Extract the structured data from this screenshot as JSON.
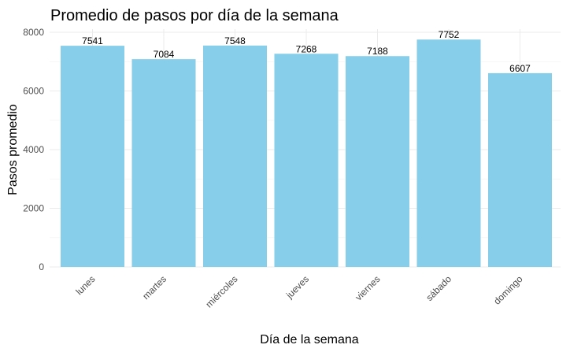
{
  "chart_data": {
    "type": "bar",
    "title": "Promedio de pasos por día de la semana",
    "xlabel": "Día de la semana",
    "ylabel": "Pasos promedio",
    "categories": [
      "lunes",
      "martes",
      "miércoles",
      "jueves",
      "viernes",
      "sábado",
      "domingo"
    ],
    "values": [
      7541,
      7084,
      7548,
      7268,
      7188,
      7752,
      6607
    ],
    "value_labels": [
      "7541",
      "7084",
      "7548",
      "7268",
      "7188",
      "7752",
      "6607"
    ],
    "ylim": [
      0,
      8000
    ],
    "yticks": [
      0,
      2000,
      4000,
      6000,
      8000
    ],
    "ytick_labels": [
      "0",
      "2000",
      "4000",
      "6000",
      "8000"
    ],
    "grid": true,
    "legend": "none",
    "bar_color": "#87CEEB",
    "x_tick_rotation": "45deg"
  }
}
